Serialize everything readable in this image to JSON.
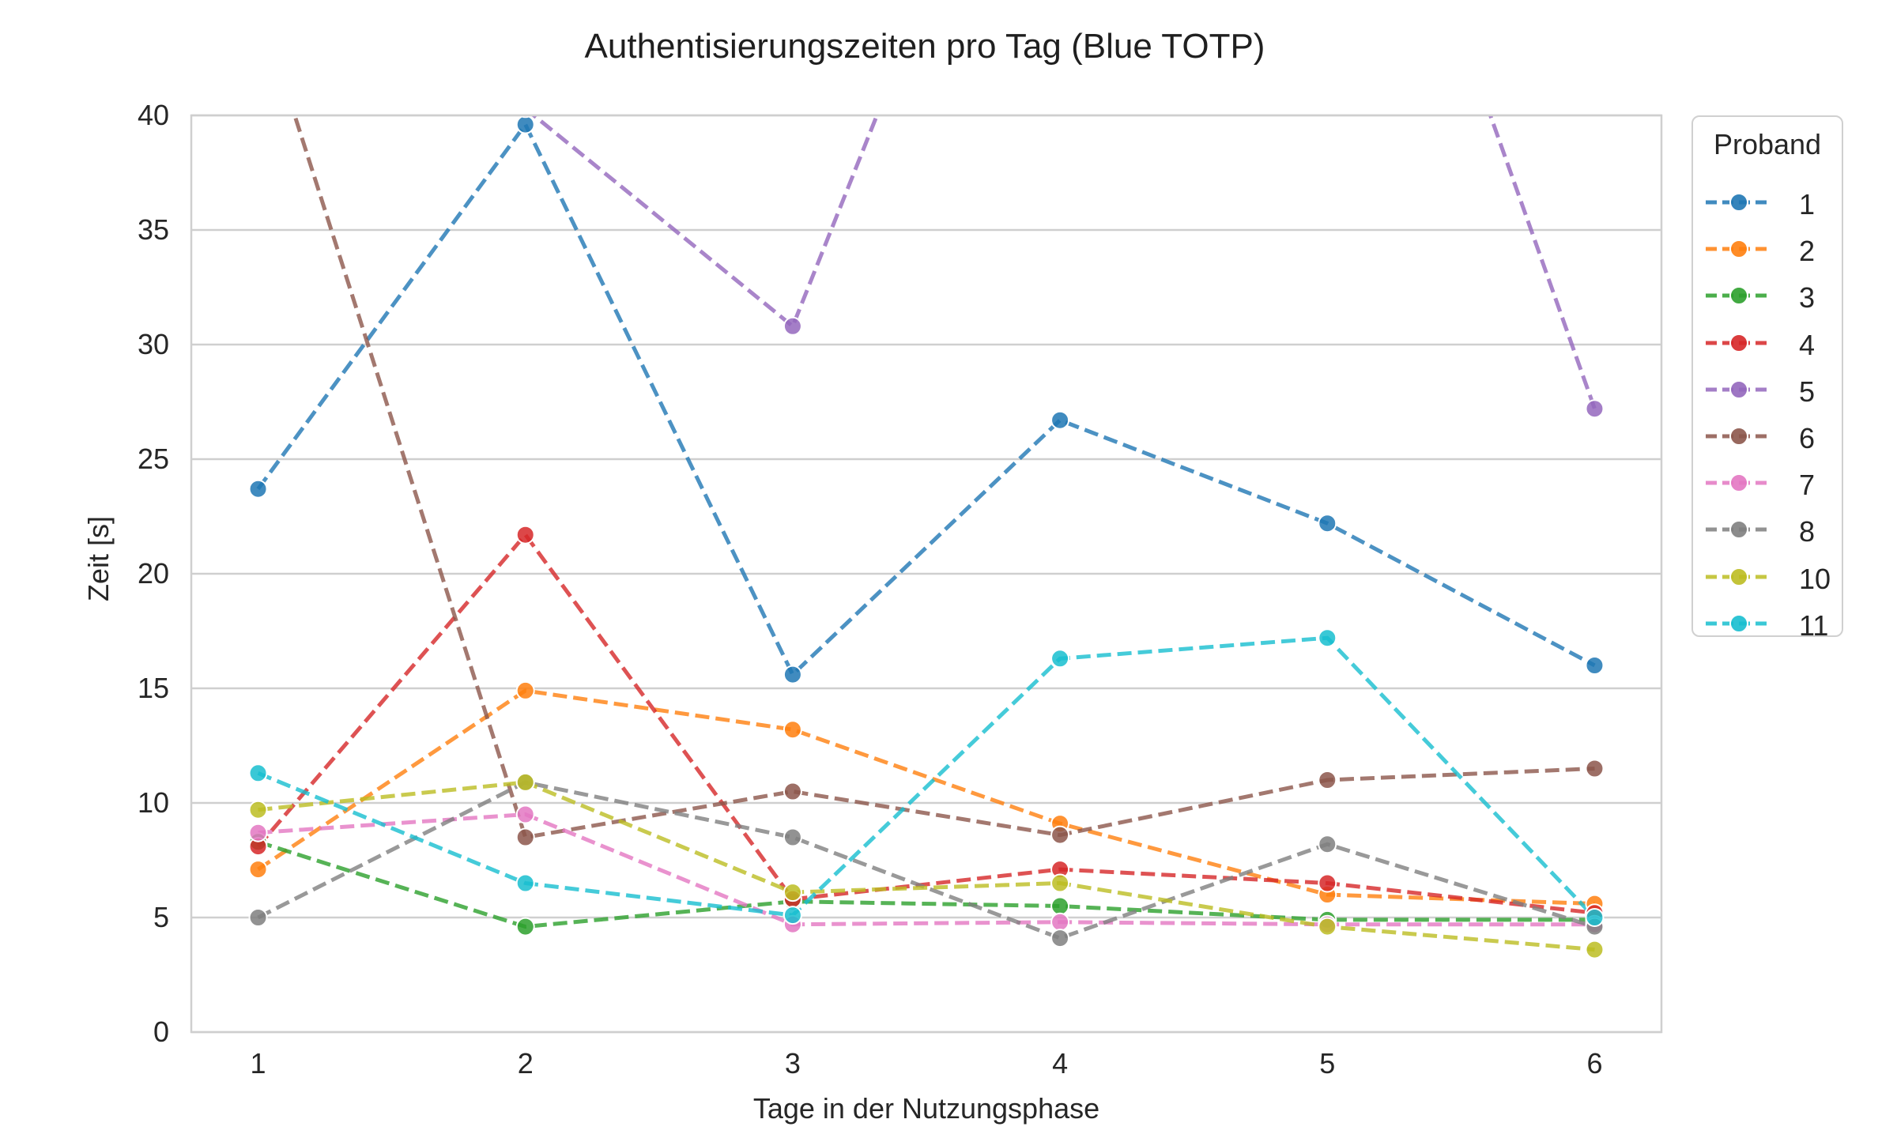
{
  "chart_data": {
    "type": "line",
    "title": "Authentisierungszeiten pro Tag (Blue TOTP)",
    "xlabel": "Tage in der Nutzungsphase",
    "ylabel": "Zeit [s]",
    "x": [
      1,
      2,
      3,
      4,
      5,
      6
    ],
    "xticks": [
      "1",
      "2",
      "3",
      "4",
      "5",
      "6"
    ],
    "yticks": [
      "0",
      "5",
      "10",
      "15",
      "20",
      "25",
      "30",
      "35",
      "40"
    ],
    "ylim": [
      0,
      40
    ],
    "grid": "horizontal",
    "legend": {
      "title": "Proband",
      "placement": "outside-right"
    },
    "series": [
      {
        "name": "1",
        "color": "#1f77b4",
        "values": [
          23.7,
          39.6,
          15.6,
          26.7,
          22.2,
          16.0
        ]
      },
      {
        "name": "2",
        "color": "#ff7f0e",
        "values": [
          7.1,
          14.9,
          13.2,
          9.1,
          6.0,
          5.6
        ]
      },
      {
        "name": "3",
        "color": "#2ca02c",
        "values": [
          8.3,
          4.6,
          5.7,
          5.5,
          4.9,
          4.9
        ]
      },
      {
        "name": "4",
        "color": "#d62728",
        "values": [
          8.1,
          21.7,
          5.8,
          7.1,
          6.5,
          5.2
        ]
      },
      {
        "name": "5",
        "color": "#9467bd",
        "values": [
          45.0,
          40.3,
          30.8,
          60.0,
          60.0,
          27.2
        ]
      },
      {
        "name": "6",
        "color": "#8c564b",
        "values": [
          45.0,
          8.5,
          10.5,
          8.6,
          11.0,
          11.5
        ]
      },
      {
        "name": "7",
        "color": "#e377c2",
        "values": [
          8.7,
          9.5,
          4.7,
          4.8,
          4.7,
          4.7
        ]
      },
      {
        "name": "8",
        "color": "#7f7f7f",
        "values": [
          5.0,
          10.9,
          8.5,
          4.1,
          8.2,
          4.6
        ]
      },
      {
        "name": "10",
        "color": "#bcbd22",
        "values": [
          9.7,
          10.9,
          6.1,
          6.5,
          4.6,
          3.6
        ]
      },
      {
        "name": "11",
        "color": "#17becf",
        "values": [
          11.3,
          6.5,
          5.1,
          16.3,
          17.2,
          5.0
        ]
      }
    ]
  }
}
